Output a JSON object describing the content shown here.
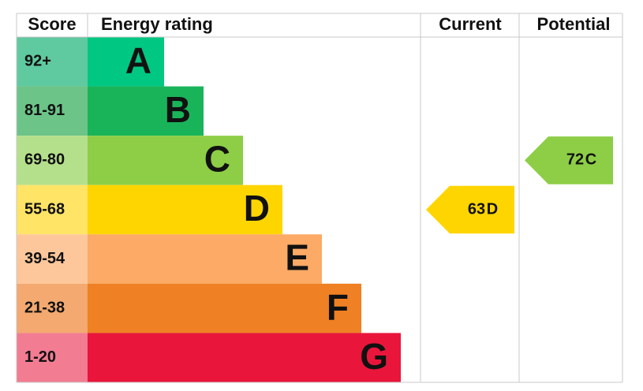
{
  "header": {
    "score": "Score",
    "rating": "Energy rating",
    "current": "Current",
    "potential": "Potential"
  },
  "bands": [
    {
      "score": "92+",
      "letter": "A",
      "color": "#00c781",
      "score_color": "#5fc9a0"
    },
    {
      "score": "81-91",
      "letter": "B",
      "color": "#19b459",
      "score_color": "#6cc488"
    },
    {
      "score": "69-80",
      "letter": "C",
      "color": "#8dce46",
      "score_color": "#b5e08b"
    },
    {
      "score": "55-68",
      "letter": "D",
      "color": "#ffd500",
      "score_color": "#ffe466"
    },
    {
      "score": "39-54",
      "letter": "E",
      "color": "#fcaa65",
      "score_color": "#fdc79b"
    },
    {
      "score": "21-38",
      "letter": "F",
      "color": "#ef8023",
      "score_color": "#f3a96f"
    },
    {
      "score": "1-20",
      "letter": "G",
      "color": "#e9153b",
      "score_color": "#f27c92"
    }
  ],
  "current": {
    "value": 63,
    "letter": "D"
  },
  "potential": {
    "value": 72,
    "letter": "C"
  }
}
